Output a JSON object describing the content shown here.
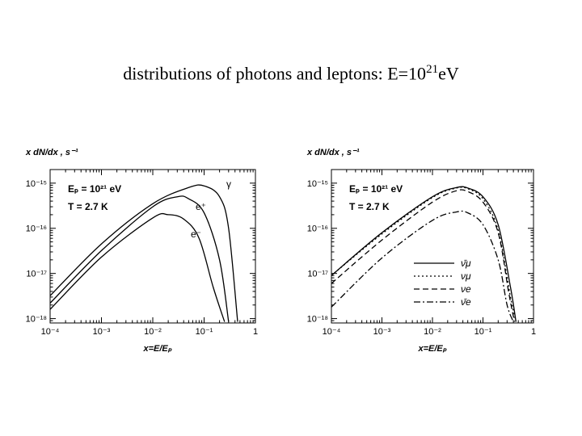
{
  "title": {
    "main": "distributions of photons and leptons: E=10",
    "exponent": "21",
    "unit": "eV"
  },
  "chart_data": [
    {
      "type": "line",
      "ylabel": "x dN/dx , s⁻¹",
      "xlabel": "x=E/Eₚ",
      "x_ticks": [
        "10⁻⁴",
        "10⁻³",
        "10⁻²",
        "10⁻¹",
        "1"
      ],
      "y_ticks": [
        "10⁻¹⁵",
        "10⁻¹⁶",
        "10⁻¹⁷",
        "10⁻¹⁸"
      ],
      "xlim": [
        0.0001,
        1
      ],
      "ylim": [
        8e-19,
        2e-15
      ],
      "xscale": "log",
      "yscale": "log",
      "annotations": [
        "Eₚ = 10²¹ eV",
        "T = 2.7 K"
      ],
      "curve_labels": [
        "γ",
        "e⁺",
        "e⁻"
      ],
      "series": [
        {
          "x": [
            0.0001,
            0.001,
            0.01,
            0.05,
            0.1,
            0.2,
            0.3,
            0.45
          ],
          "y": [
            3.2e-18,
            4.5e-17,
            3.5e-16,
            8e-16,
            8.7e-16,
            5e-16,
            1e-16,
            8.5e-19
          ]
        },
        {
          "x": [
            0.0001,
            0.001,
            0.01,
            0.03,
            0.05,
            0.1,
            0.2,
            0.3
          ],
          "y": [
            2.2e-18,
            3.2e-17,
            3e-16,
            5e-16,
            4.5e-16,
            2.2e-16,
            2e-17,
            8.5e-19
          ]
        },
        {
          "x": [
            0.0001,
            0.001,
            0.01,
            0.02,
            0.04,
            0.08,
            0.15,
            0.25
          ],
          "y": [
            1.6e-18,
            2.3e-17,
            1.7e-16,
            2e-16,
            1.6e-16,
            6e-17,
            5e-18,
            8.5e-19
          ]
        }
      ]
    },
    {
      "type": "line",
      "ylabel": "x dN/dx , s⁻¹",
      "xlabel": "x=E/Eₚ",
      "x_ticks": [
        "10⁻⁴",
        "10⁻³",
        "10⁻²",
        "10⁻¹",
        "1"
      ],
      "y_ticks": [
        "10⁻¹⁵",
        "10⁻¹⁶",
        "10⁻¹⁷",
        "10⁻¹⁸"
      ],
      "xlim": [
        0.0001,
        1
      ],
      "ylim": [
        8e-19,
        2e-15
      ],
      "xscale": "log",
      "yscale": "log",
      "annotations": [
        "Eₚ = 10²¹ eV",
        "T = 2.7 K"
      ],
      "legend_position": "bottom-right",
      "series": [
        {
          "name": "ν̄μ",
          "dash": "solid",
          "x": [
            0.0001,
            0.001,
            0.01,
            0.03,
            0.05,
            0.1,
            0.2,
            0.35,
            0.45
          ],
          "y": [
            9e-18,
            8e-17,
            5e-16,
            8e-16,
            7.8e-16,
            5e-16,
            1.2e-16,
            5e-18,
            8.5e-19
          ]
        },
        {
          "name": "νμ",
          "dash": "dotted",
          "x": [
            0.0001,
            0.001,
            0.01,
            0.03,
            0.05,
            0.1,
            0.2,
            0.35,
            0.45
          ],
          "y": [
            9e-18,
            7.5e-17,
            4.8e-16,
            7.8e-16,
            7.5e-16,
            4.5e-16,
            9e-17,
            3e-18,
            8.5e-19
          ]
        },
        {
          "name": "νe",
          "dash": "dashed",
          "x": [
            0.0001,
            0.001,
            0.01,
            0.03,
            0.05,
            0.1,
            0.2,
            0.32,
            0.42
          ],
          "y": [
            6e-18,
            5.5e-17,
            3.8e-16,
            6.8e-16,
            6.5e-16,
            3.8e-16,
            8e-17,
            4e-18,
            8.5e-19
          ]
        },
        {
          "name": "ν̄e",
          "dash": "dashdot",
          "x": [
            0.0001,
            0.001,
            0.01,
            0.03,
            0.05,
            0.1,
            0.2,
            0.3,
            0.4
          ],
          "y": [
            1.8e-18,
            2.2e-17,
            1.5e-16,
            2.3e-16,
            2.2e-16,
            1.2e-16,
            2e-17,
            2e-18,
            8.5e-19
          ]
        }
      ]
    }
  ]
}
